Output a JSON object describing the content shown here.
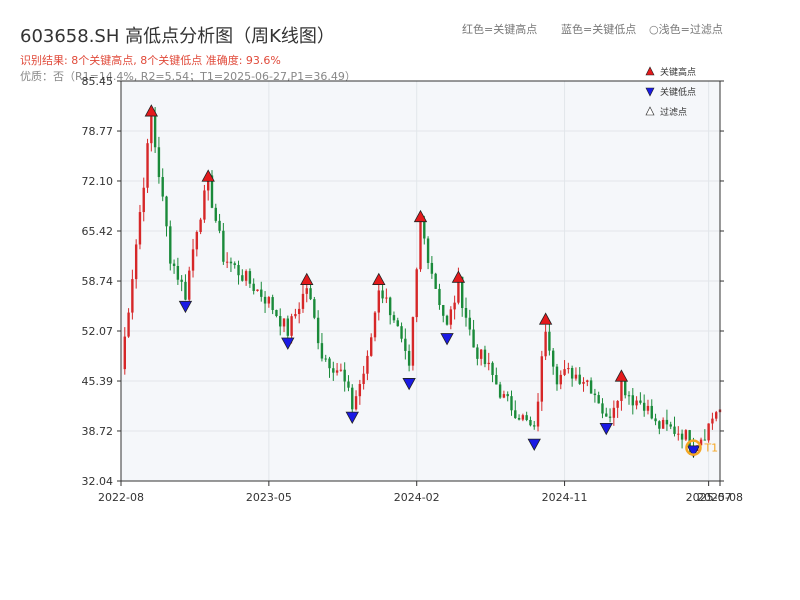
{
  "header": {
    "title": "603658.SH 高低点分析图（周K线图）",
    "subtitle1": "识别结果: 8个关键高点, 8个关键低点  准确度: 93.6%",
    "subtitle2": "优质：否（R1=14.4%, R2=5.54；T1=2025-06-27,P1=36.49）",
    "legend_red": "红色=关键高点",
    "legend_blue": "蓝色=关键低点",
    "legend_light": "○浅色=过滤点"
  },
  "colors": {
    "up": "#d62728",
    "down": "#1a8a3a",
    "high_marker": "#e41a1c",
    "low_marker": "#1a1ae4",
    "t1_marker": "#f5a623",
    "plot_bg": "#f5f7fa",
    "grid": "#e2e6ea"
  },
  "chart_data": {
    "type": "candlestick",
    "title": "603658.SH 高低点分析图（周K线图）",
    "ylim": [
      32.04,
      85.45
    ],
    "yticks": [
      "32.04",
      "38.72",
      "45.39",
      "52.07",
      "58.74",
      "65.42",
      "72.10",
      "78.77",
      "85.45"
    ],
    "xticks": [
      "2022-08",
      "2023-05",
      "2024-02",
      "2024-11",
      "2025-07",
      "2025-08"
    ],
    "xtick_weeks": [
      0,
      39,
      78,
      117,
      155,
      158
    ],
    "legend": {
      "high": "关键高点",
      "low": "关键低点",
      "filtered": "过滤点"
    },
    "t1_label": "T1",
    "t1": {
      "week": 151,
      "value": 36.49
    },
    "key_highs": [
      {
        "week": 8,
        "value": 80.5
      },
      {
        "week": 23,
        "value": 71.8
      },
      {
        "week": 49,
        "value": 58.0
      },
      {
        "week": 68,
        "value": 58.0
      },
      {
        "week": 79,
        "value": 66.4
      },
      {
        "week": 89,
        "value": 58.3
      },
      {
        "week": 112,
        "value": 52.7
      },
      {
        "week": 132,
        "value": 45.1
      }
    ],
    "key_lows": [
      {
        "week": 17,
        "value": 56.3
      },
      {
        "week": 44,
        "value": 51.4
      },
      {
        "week": 61,
        "value": 41.5
      },
      {
        "week": 76,
        "value": 46.0
      },
      {
        "week": 86,
        "value": 52.0
      },
      {
        "week": 109,
        "value": 37.9
      },
      {
        "week": 128,
        "value": 40.0
      },
      {
        "week": 151,
        "value": 37.0
      }
    ],
    "anchors": [
      [
        0,
        47.0
      ],
      [
        8,
        80.5
      ],
      [
        13,
        62.0
      ],
      [
        17,
        57.0
      ],
      [
        20,
        66.0
      ],
      [
        23,
        71.8
      ],
      [
        27,
        62.0
      ],
      [
        33,
        59.0
      ],
      [
        39,
        56.0
      ],
      [
        44,
        52.0
      ],
      [
        49,
        58.0
      ],
      [
        53,
        49.0
      ],
      [
        58,
        46.5
      ],
      [
        61,
        42.0
      ],
      [
        65,
        48.0
      ],
      [
        68,
        58.0
      ],
      [
        72,
        54.0
      ],
      [
        76,
        46.5
      ],
      [
        79,
        66.4
      ],
      [
        83,
        58.0
      ],
      [
        86,
        52.5
      ],
      [
        89,
        58.3
      ],
      [
        93,
        50.0
      ],
      [
        97,
        47.0
      ],
      [
        101,
        43.0
      ],
      [
        105,
        41.0
      ],
      [
        109,
        38.5
      ],
      [
        112,
        52.7
      ],
      [
        115,
        46.0
      ],
      [
        119,
        46.5
      ],
      [
        123,
        45.5
      ],
      [
        126,
        43.0
      ],
      [
        128,
        40.0
      ],
      [
        132,
        45.1
      ],
      [
        135,
        43.0
      ],
      [
        138,
        42.5
      ],
      [
        141,
        39.5
      ],
      [
        145,
        39.0
      ],
      [
        148,
        38.5
      ],
      [
        151,
        37.0
      ],
      [
        154,
        38.5
      ],
      [
        157,
        41.5
      ]
    ]
  }
}
